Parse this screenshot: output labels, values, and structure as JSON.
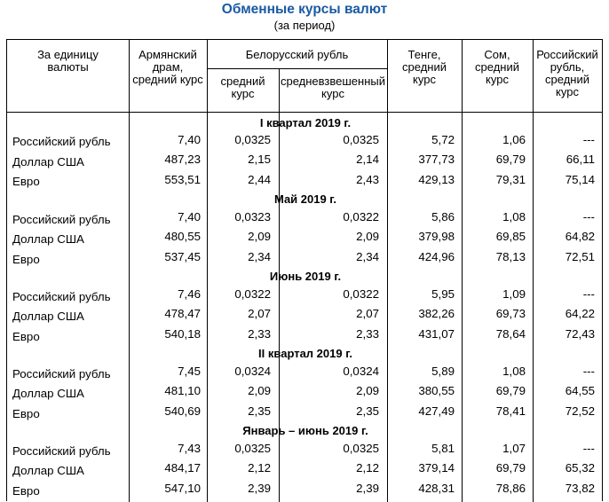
{
  "title": "Обменные курсы валют",
  "subtitle": "(за период)",
  "headers": {
    "unit": [
      "За единицу",
      "валюты"
    ],
    "amd": [
      "Армянский",
      "драм,",
      "средний курс"
    ],
    "byn_group": "Белорусский рубль",
    "byn_avg": [
      "средний",
      "курс"
    ],
    "byn_wavg": [
      "средневзвешенный",
      "курс"
    ],
    "kzt": [
      "Тенге,",
      "средний",
      "курс"
    ],
    "kgs": [
      "Сом,",
      "средний",
      "курс"
    ],
    "rub": [
      "Российский",
      "рубль,",
      "средний",
      "курс"
    ]
  },
  "sections": [
    {
      "title": "I квартал 2019 г.",
      "rows": [
        {
          "label": "Российский рубль",
          "amd": "7,40",
          "byn_avg": "0,0325",
          "byn_wavg": "0,0325",
          "kzt": "5,72",
          "kgs": "1,06",
          "rub": "---"
        },
        {
          "label": "Доллар США",
          "amd": "487,23",
          "byn_avg": "2,15",
          "byn_wavg": "2,14",
          "kzt": "377,73",
          "kgs": "69,79",
          "rub": "66,11"
        },
        {
          "label": "Евро",
          "amd": "553,51",
          "byn_avg": "2,44",
          "byn_wavg": "2,43",
          "kzt": "429,13",
          "kgs": "79,31",
          "rub": "75,14"
        }
      ]
    },
    {
      "title": "Май 2019 г.",
      "rows": [
        {
          "label": "Российский рубль",
          "amd": "7,40",
          "byn_avg": "0,0323",
          "byn_wavg": "0,0322",
          "kzt": "5,86",
          "kgs": "1,08",
          "rub": "---"
        },
        {
          "label": "Доллар США",
          "amd": "480,55",
          "byn_avg": "2,09",
          "byn_wavg": "2,09",
          "kzt": "379,98",
          "kgs": "69,85",
          "rub": "64,82"
        },
        {
          "label": "Евро",
          "amd": "537,45",
          "byn_avg": "2,34",
          "byn_wavg": "2,34",
          "kzt": "424,96",
          "kgs": "78,13",
          "rub": "72,51"
        }
      ]
    },
    {
      "title": "Июнь 2019 г.",
      "rows": [
        {
          "label": "Российский рубль",
          "amd": "7,46",
          "byn_avg": "0,0322",
          "byn_wavg": "0,0322",
          "kzt": "5,95",
          "kgs": "1,09",
          "rub": "---"
        },
        {
          "label": "Доллар США",
          "amd": "478,47",
          "byn_avg": "2,07",
          "byn_wavg": "2,07",
          "kzt": "382,26",
          "kgs": "69,73",
          "rub": "64,22"
        },
        {
          "label": "Евро",
          "amd": "540,18",
          "byn_avg": "2,33",
          "byn_wavg": "2,33",
          "kzt": "431,07",
          "kgs": "78,64",
          "rub": "72,43"
        }
      ]
    },
    {
      "title": "II квартал 2019 г.",
      "rows": [
        {
          "label": "Российский рубль",
          "amd": "7,45",
          "byn_avg": "0,0324",
          "byn_wavg": "0,0324",
          "kzt": "5,89",
          "kgs": "1,08",
          "rub": "---"
        },
        {
          "label": "Доллар США",
          "amd": "481,10",
          "byn_avg": "2,09",
          "byn_wavg": "2,09",
          "kzt": "380,55",
          "kgs": "69,79",
          "rub": "64,55"
        },
        {
          "label": "Евро",
          "amd": "540,69",
          "byn_avg": "2,35",
          "byn_wavg": "2,35",
          "kzt": "427,49",
          "kgs": "78,41",
          "rub": "72,52"
        }
      ]
    },
    {
      "title": "Январь – июнь 2019 г.",
      "rows": [
        {
          "label": "Российский рубль",
          "amd": "7,43",
          "byn_avg": "0,0325",
          "byn_wavg": "0,0325",
          "kzt": "5,81",
          "kgs": "1,07",
          "rub": "---"
        },
        {
          "label": "Доллар США",
          "amd": "484,17",
          "byn_avg": "2,12",
          "byn_wavg": "2,12",
          "kzt": "379,14",
          "kgs": "69,79",
          "rub": "65,32"
        },
        {
          "label": "Евро",
          "amd": "547,10",
          "byn_avg": "2,39",
          "byn_wavg": "2,39",
          "kzt": "428,31",
          "kgs": "78,86",
          "rub": "73,82"
        }
      ]
    }
  ]
}
